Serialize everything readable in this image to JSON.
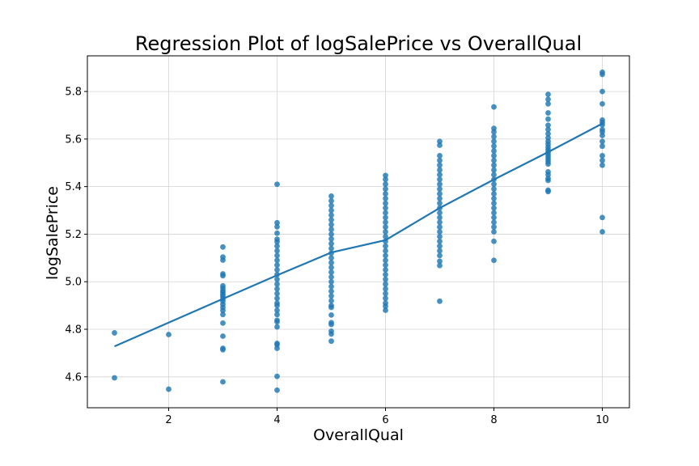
{
  "chart_data": {
    "type": "scatter",
    "title": "Regression Plot of logSalePrice vs OverallQual",
    "xlabel": "OverallQual",
    "ylabel": "logSalePrice",
    "xlim": [
      0.5,
      10.5
    ],
    "ylim": [
      4.47,
      5.95
    ],
    "xticks": [
      2,
      4,
      6,
      8,
      10
    ],
    "xtick_labels": [
      "2",
      "4",
      "6",
      "8",
      "10"
    ],
    "yticks": [
      4.6,
      4.8,
      5.0,
      5.2,
      5.4,
      5.6,
      5.8
    ],
    "ytick_labels": [
      "4.6",
      "4.8",
      "5.0",
      "5.2",
      "5.4",
      "5.6",
      "5.8"
    ],
    "grid": true,
    "point_color": "#1f77b4",
    "line_color": "#1f77b4",
    "points": [
      {
        "x": 1,
        "y": [
          4.785,
          4.596
        ]
      },
      {
        "x": 2,
        "y": [
          4.778,
          4.548
        ]
      },
      {
        "x": 3,
        "y": [
          5.146,
          5.104,
          5.091,
          5.033,
          5.025,
          4.983,
          4.973,
          4.962,
          4.955,
          4.946,
          4.938,
          4.928,
          4.918,
          4.905,
          4.892,
          4.879,
          4.862,
          4.826,
          4.771,
          4.72,
          4.714,
          4.579
        ]
      },
      {
        "x": 4,
        "y": [
          5.41,
          5.248,
          5.231,
          5.204,
          5.179,
          5.168,
          5.15,
          5.13,
          5.11,
          5.09,
          5.07,
          5.05,
          5.03,
          5.01,
          4.99,
          4.97,
          4.95,
          4.93,
          4.91,
          4.9,
          4.88,
          4.862,
          4.838,
          4.831,
          4.81,
          4.741,
          4.735,
          4.72,
          4.602,
          4.544
        ]
      },
      {
        "x": 5,
        "y": [
          5.36,
          5.34,
          5.32,
          5.3,
          5.28,
          5.26,
          5.24,
          5.22,
          5.2,
          5.18,
          5.16,
          5.14,
          5.12,
          5.1,
          5.08,
          5.06,
          5.04,
          5.02,
          5.0,
          4.98,
          4.96,
          4.94,
          4.92,
          4.9,
          4.892,
          4.86,
          4.828,
          4.82,
          4.792,
          4.78,
          4.75
        ]
      },
      {
        "x": 6,
        "y": [
          5.447,
          5.43,
          5.41,
          5.39,
          5.37,
          5.35,
          5.33,
          5.31,
          5.29,
          5.27,
          5.25,
          5.23,
          5.21,
          5.19,
          5.17,
          5.15,
          5.13,
          5.11,
          5.09,
          5.07,
          5.05,
          5.03,
          5.01,
          4.99,
          4.97,
          4.95,
          4.93,
          4.91,
          4.897,
          4.88
        ]
      },
      {
        "x": 7,
        "y": [
          5.59,
          5.574,
          5.53,
          5.51,
          5.49,
          5.47,
          5.45,
          5.43,
          5.41,
          5.39,
          5.37,
          5.35,
          5.33,
          5.31,
          5.29,
          5.27,
          5.25,
          5.23,
          5.21,
          5.19,
          5.17,
          5.15,
          5.13,
          5.11,
          5.086,
          5.068,
          4.918
        ]
      },
      {
        "x": 8,
        "y": [
          5.735,
          5.645,
          5.63,
          5.61,
          5.59,
          5.57,
          5.55,
          5.53,
          5.51,
          5.49,
          5.47,
          5.45,
          5.43,
          5.41,
          5.39,
          5.37,
          5.35,
          5.33,
          5.31,
          5.29,
          5.27,
          5.25,
          5.23,
          5.21,
          5.17,
          5.09
        ]
      },
      {
        "x": 9,
        "y": [
          5.788,
          5.767,
          5.748,
          5.71,
          5.684,
          5.658,
          5.64,
          5.622,
          5.605,
          5.59,
          5.578,
          5.566,
          5.555,
          5.545,
          5.535,
          5.525,
          5.515,
          5.505,
          5.495,
          5.462,
          5.45,
          5.434,
          5.426,
          5.385,
          5.379
        ]
      },
      {
        "x": 10,
        "y": [
          5.881,
          5.872,
          5.8,
          5.748,
          5.68,
          5.67,
          5.66,
          5.64,
          5.63,
          5.615,
          5.59,
          5.57,
          5.53,
          5.51,
          5.49,
          5.27,
          5.21
        ]
      }
    ],
    "regression_line": {
      "x": [
        1,
        2,
        3,
        4,
        5,
        6,
        7,
        8,
        9,
        10
      ],
      "y": [
        4.728,
        4.828,
        4.928,
        5.027,
        5.123,
        5.175,
        5.31,
        5.43,
        5.545,
        5.665
      ]
    }
  }
}
